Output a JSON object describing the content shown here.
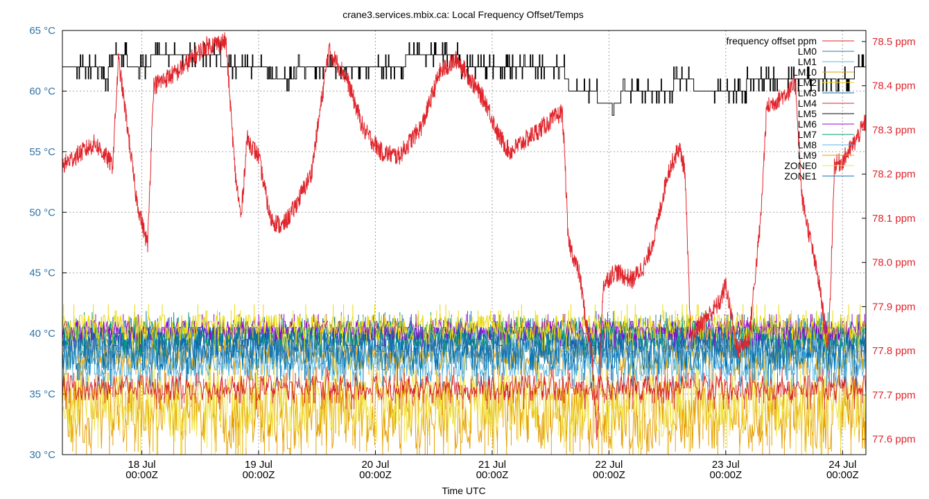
{
  "chart_data": {
    "type": "line",
    "title": "crane3.services.mbix.ca: Local Frequency Offset/Temps",
    "xlabel": "Time UTC",
    "x_ticks": [
      {
        "line1": "18 Jul",
        "line2": "00:00Z"
      },
      {
        "line1": "19 Jul",
        "line2": "00:00Z"
      },
      {
        "line1": "20 Jul",
        "line2": "00:00Z"
      },
      {
        "line1": "21 Jul",
        "line2": "00:00Z"
      },
      {
        "line1": "22 Jul",
        "line2": "00:00Z"
      },
      {
        "line1": "23 Jul",
        "line2": "00:00Z"
      },
      {
        "line1": "24 Jul",
        "line2": "00:00Z"
      }
    ],
    "xlim_days": [
      -0.68,
      6.2
    ],
    "y_left": {
      "unit": "°C",
      "ticks": [
        "30 °C",
        "35 °C",
        "40 °C",
        "45 °C",
        "50 °C",
        "55 °C",
        "60 °C",
        "65 °C"
      ],
      "range": [
        30,
        65
      ],
      "color": "#2f74a6"
    },
    "y_right": {
      "unit": "ppm",
      "ticks": [
        "77.6 ppm",
        "77.7 ppm",
        "77.8 ppm",
        "77.9 ppm",
        "78.0 ppm",
        "78.1 ppm",
        "78.2 ppm",
        "78.3 ppm",
        "78.4 ppm",
        "78.5 ppm"
      ],
      "range": [
        77.565,
        78.525
      ],
      "color": "#e0242b"
    },
    "grid": true,
    "legend_position": "top-right",
    "series": [
      {
        "name": "frequency offset ppm",
        "color": "#e0242b",
        "axis": "right",
        "points": [
          [
            -0.68,
            78.22
          ],
          [
            -0.4,
            78.27
          ],
          [
            -0.25,
            78.22
          ],
          [
            -0.2,
            78.46
          ],
          [
            -0.12,
            78.3
          ],
          [
            -0.05,
            78.15
          ],
          [
            0.0,
            78.09
          ],
          [
            0.05,
            78.04
          ],
          [
            0.1,
            78.4
          ],
          [
            0.3,
            78.43
          ],
          [
            0.55,
            78.49
          ],
          [
            0.72,
            78.5
          ],
          [
            0.8,
            78.2
          ],
          [
            0.85,
            78.1
          ],
          [
            0.9,
            78.28
          ],
          [
            1.0,
            78.24
          ],
          [
            1.1,
            78.1
          ],
          [
            1.2,
            78.08
          ],
          [
            1.3,
            78.12
          ],
          [
            1.45,
            78.2
          ],
          [
            1.6,
            78.48
          ],
          [
            1.75,
            78.42
          ],
          [
            1.9,
            78.3
          ],
          [
            2.05,
            78.25
          ],
          [
            2.2,
            78.24
          ],
          [
            2.4,
            78.31
          ],
          [
            2.55,
            78.43
          ],
          [
            2.7,
            78.46
          ],
          [
            2.8,
            78.42
          ],
          [
            2.95,
            78.36
          ],
          [
            3.05,
            78.29
          ],
          [
            3.15,
            78.25
          ],
          [
            3.3,
            78.28
          ],
          [
            3.5,
            78.32
          ],
          [
            3.6,
            78.34
          ],
          [
            3.62,
            78.25
          ],
          [
            3.65,
            78.05
          ],
          [
            3.75,
            77.97
          ],
          [
            3.8,
            77.87
          ],
          [
            3.85,
            77.8
          ],
          [
            3.9,
            77.6
          ],
          [
            3.95,
            77.95
          ],
          [
            4.05,
            77.98
          ],
          [
            4.2,
            77.96
          ],
          [
            4.32,
            78.0
          ],
          [
            4.4,
            78.07
          ],
          [
            4.5,
            78.2
          ],
          [
            4.6,
            78.26
          ],
          [
            4.65,
            78.21
          ],
          [
            4.7,
            77.82
          ],
          [
            4.75,
            77.85
          ],
          [
            4.85,
            77.88
          ],
          [
            4.95,
            77.91
          ],
          [
            5.0,
            77.95
          ],
          [
            5.1,
            77.8
          ],
          [
            5.2,
            77.83
          ],
          [
            5.3,
            78.1
          ],
          [
            5.35,
            78.35
          ],
          [
            5.5,
            78.38
          ],
          [
            5.6,
            78.4
          ],
          [
            5.65,
            78.15
          ],
          [
            5.8,
            77.95
          ],
          [
            5.88,
            77.8
          ],
          [
            5.93,
            78.22
          ],
          [
            6.0,
            78.23
          ],
          [
            6.1,
            78.27
          ],
          [
            6.2,
            78.32
          ]
        ]
      },
      {
        "name": "LM0",
        "color": "#2f74a6",
        "axis": "left",
        "base": 39.3,
        "amp": 0.7
      },
      {
        "name": "LM1",
        "color": "#55b4e0",
        "axis": "left",
        "base": 37.4,
        "amp": 0.6
      },
      {
        "name": "LM10",
        "color": "#e2a100",
        "axis": "left",
        "base": 38.2,
        "amp": 0.6
      },
      {
        "name": "LM2",
        "color": "#e8d900",
        "axis": "left",
        "base": 40.5,
        "amp": 0.6
      },
      {
        "name": "LM3",
        "color": "#0a67a6",
        "axis": "left",
        "base": 39.8,
        "amp": 0.5
      },
      {
        "name": "LM4",
        "color": "#d6242a",
        "axis": "left",
        "base": 35.5,
        "amp": 0.5
      },
      {
        "name": "LM5",
        "color": "#000000",
        "axis": "left",
        "points": [
          [
            -0.68,
            62
          ],
          [
            -0.35,
            62
          ],
          [
            -0.3,
            61
          ],
          [
            -0.25,
            63
          ],
          [
            0.0,
            62
          ],
          [
            0.15,
            63
          ],
          [
            0.6,
            63
          ],
          [
            0.75,
            62
          ],
          [
            1.0,
            62
          ],
          [
            1.2,
            61
          ],
          [
            1.45,
            62
          ],
          [
            2.0,
            62
          ],
          [
            2.5,
            63
          ],
          [
            2.95,
            62
          ],
          [
            3.6,
            62
          ],
          [
            3.65,
            60.5
          ],
          [
            3.8,
            60
          ],
          [
            4.0,
            59
          ],
          [
            4.2,
            60
          ],
          [
            4.5,
            60
          ],
          [
            4.6,
            61
          ],
          [
            4.85,
            60
          ],
          [
            5.1,
            60
          ],
          [
            5.25,
            61
          ],
          [
            5.45,
            61
          ],
          [
            5.6,
            61.5
          ],
          [
            5.8,
            61
          ],
          [
            6.0,
            61
          ],
          [
            6.2,
            62
          ]
        ]
      },
      {
        "name": "LM6",
        "color": "#9400d3",
        "axis": "left",
        "base": 40.3,
        "amp": 0.4
      },
      {
        "name": "LM7",
        "color": "#009e73",
        "axis": "left",
        "base": 40.0,
        "amp": 0.5
      },
      {
        "name": "LM8",
        "color": "#56b4e9",
        "axis": "left",
        "base": 38.8,
        "amp": 0.5
      },
      {
        "name": "LM9",
        "color": "#e69f00",
        "axis": "left",
        "base": 33.3,
        "amp": 1.5
      },
      {
        "name": "ZONE0",
        "color": "#f0e442",
        "axis": "left",
        "base": 34.2,
        "amp": 1.3
      },
      {
        "name": "ZONE1",
        "color": "#0072b2",
        "axis": "left",
        "base": 38.6,
        "amp": 0.9
      }
    ]
  }
}
